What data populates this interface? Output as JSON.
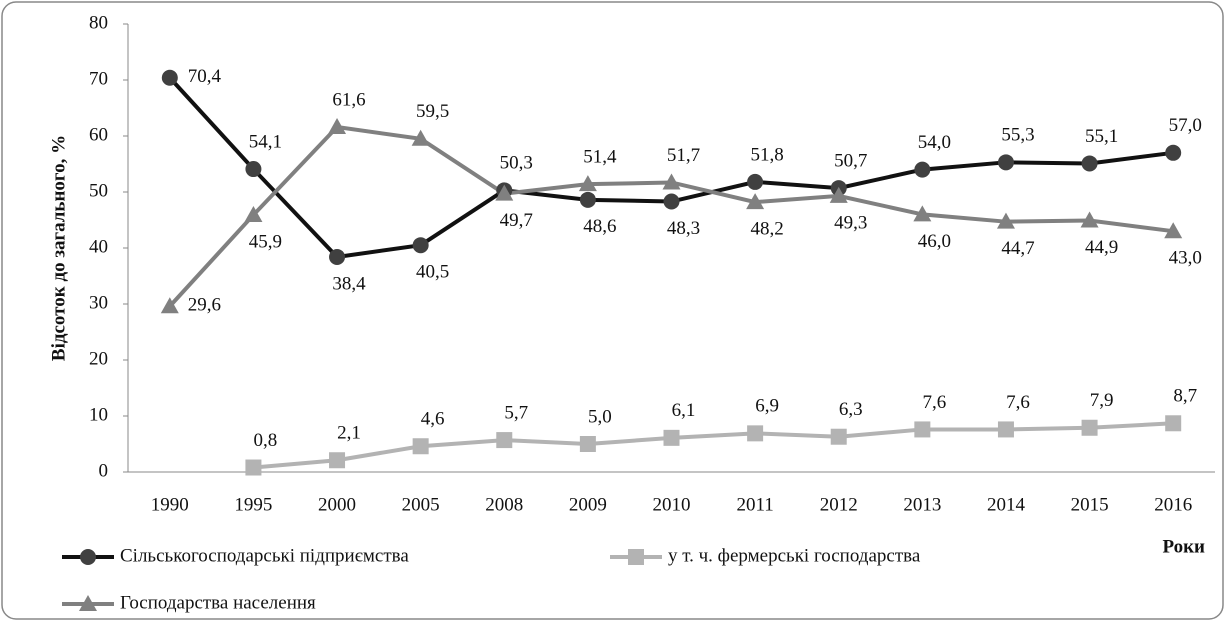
{
  "chart_data": {
    "type": "line",
    "ylabel": "Відсоток до загального, %",
    "xlabel": "Роки",
    "categories": [
      "1990",
      "1995",
      "2000",
      "2005",
      "2008",
      "2009",
      "2010",
      "2011",
      "2012",
      "2013",
      "2014",
      "2015",
      "2016"
    ],
    "series": [
      {
        "name": "Сільськогосподарські підприємства",
        "color": "#111111",
        "marker": "circle",
        "marker_color": "#404040",
        "values": [
          70.4,
          54.1,
          38.4,
          40.5,
          50.3,
          48.6,
          48.3,
          51.8,
          50.7,
          54.0,
          55.3,
          55.1,
          57.0
        ],
        "value_labels": [
          "70,4",
          "54,1",
          "38,4",
          "40,5",
          "50,3",
          "48,6",
          "48,3",
          "51,8",
          "50,7",
          "54,0",
          "55,3",
          "55,1",
          "57,0"
        ]
      },
      {
        "name": "у т. ч. фермерські господарства",
        "color": "#b3b3b3",
        "marker": "square",
        "marker_color": "#b3b3b3",
        "values": [
          null,
          0.8,
          2.1,
          4.6,
          5.7,
          5.0,
          6.1,
          6.9,
          6.3,
          7.6,
          7.6,
          7.9,
          8.7
        ],
        "value_labels": [
          null,
          "0,8",
          "2,1",
          "4,6",
          "5,7",
          "5,0",
          "6,1",
          "6,9",
          "6,3",
          "7,6",
          "7,6",
          "7,9",
          "8,7"
        ]
      },
      {
        "name": "Господарства населення",
        "color": "#808080",
        "marker": "triangle",
        "marker_color": "#808080",
        "values": [
          29.6,
          45.9,
          61.6,
          59.5,
          49.7,
          51.4,
          51.7,
          48.2,
          49.3,
          46.0,
          44.7,
          44.9,
          43.0
        ],
        "value_labels": [
          "29,6",
          "45,9",
          "61,6",
          "59,5",
          "49,7",
          "51,4",
          "51,7",
          "48,2",
          "49,3",
          "46,0",
          "44,7",
          "44,9",
          "43,0"
        ]
      }
    ],
    "ylim": [
      0,
      80
    ],
    "yticks": [
      0,
      10,
      20,
      30,
      40,
      50,
      60,
      70,
      80
    ],
    "grid": false,
    "legend": "bottom"
  }
}
